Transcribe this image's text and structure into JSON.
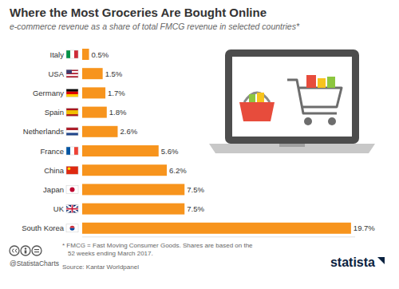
{
  "chart_data": {
    "type": "bar",
    "orientation": "horizontal",
    "title": "Where the Most Groceries Are Bought Online",
    "subtitle": "e-commerce revenue as a share of total FMCG revenue in selected countries*",
    "categories": [
      "Italy",
      "USA",
      "Germany",
      "Spain",
      "Netherlands",
      "France",
      "China",
      "Japan",
      "UK",
      "South Korea"
    ],
    "values": [
      0.5,
      1.5,
      1.7,
      1.8,
      2.6,
      5.6,
      6.2,
      7.5,
      7.5,
      19.7
    ],
    "value_labels": [
      "0.5%",
      "1.5%",
      "1.7%",
      "1.8%",
      "2.6%",
      "5.6%",
      "6.2%",
      "7.5%",
      "7.5%",
      "19.7%"
    ],
    "color": "#f7941d",
    "ylim": [
      0,
      20
    ],
    "grid": false,
    "data_labels": true,
    "tick_labels": "x",
    "annotations": [
      "* FMCG = Fast Moving Consumer Goods. Shares are based on the 52 weeks ending March 2017.",
      "Source: Kantar Worldpanel",
      "@StatistaCharts",
      "statista"
    ]
  }
}
